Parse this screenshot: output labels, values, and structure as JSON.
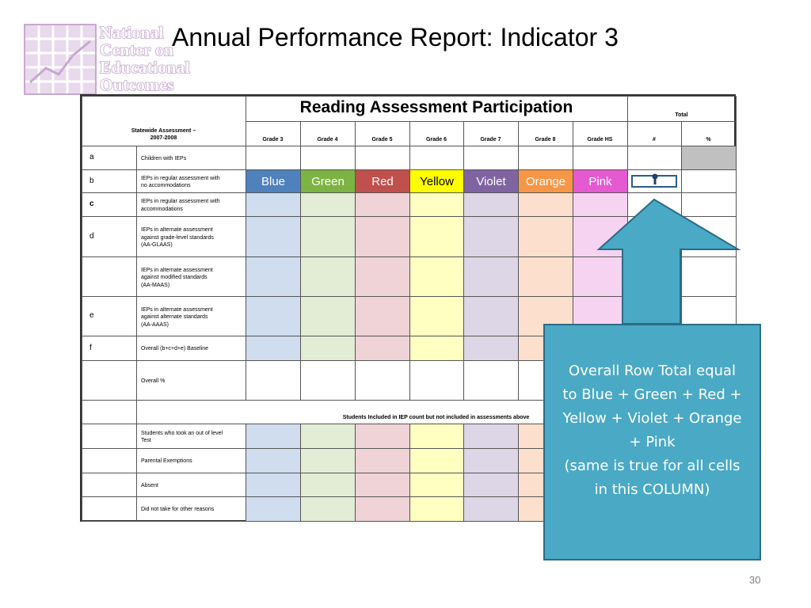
{
  "logo": {
    "lines": [
      "National",
      "Center on",
      "Educational",
      "Outcomes"
    ]
  },
  "slide": {
    "title": "Annual Performance Report: Indicator 3",
    "page_number": "30"
  },
  "table": {
    "title": "Reading Assessment Participation",
    "total_label": "Total",
    "statewide_label_line1": "Statewide Assessment –",
    "statewide_label_line2": "2007-2008",
    "grades": [
      "Grade 3",
      "Grade 4",
      "Grade 5",
      "Grade 6",
      "Grade 7",
      "Grade 8",
      "Grade HS"
    ],
    "hash_label": "#",
    "pct_label": "%",
    "column_colors": [
      "#cfddee",
      "#e3edd6",
      "#efd3d6",
      "#ffffc2",
      "#ddd6e6",
      "#fce0cd",
      "#f7d3f2"
    ],
    "color_labels": [
      {
        "label": "Blue",
        "color": "#4f81bd",
        "text": "#ffffff"
      },
      {
        "label": "Green",
        "color": "#7cb342",
        "text": "#ffffff"
      },
      {
        "label": "Red",
        "color": "#c0504d",
        "text": "#ffffff"
      },
      {
        "label": "Yellow",
        "color": "#ffff00",
        "text": "#000000"
      },
      {
        "label": "Violet",
        "color": "#8064a2",
        "text": "#ffffff"
      },
      {
        "label": "Orange",
        "color": "#f79646",
        "text": "#ffffff"
      },
      {
        "label": "Pink",
        "color": "#e55ad0",
        "text": "#ffffff"
      }
    ],
    "rows": [
      {
        "letter": "a",
        "letter_bold": false,
        "lines": [
          "Children with IEPs"
        ]
      },
      {
        "letter": "b",
        "letter_bold": false,
        "lines": [
          "IEPs in regular assessment with",
          "no accommodations"
        ]
      },
      {
        "letter": "c",
        "letter_bold": true,
        "lines": [
          "IEPs in regular assessment with",
          "accommodations"
        ]
      },
      {
        "letter": "d",
        "letter_bold": false,
        "lines": [
          "IEPs in alternate assessment",
          "against grade-level standards",
          "(AA-GLAAS)"
        ]
      },
      {
        "letter": "",
        "letter_bold": false,
        "lines": [
          "IEPs in alternate assessment",
          "against modified standards",
          "(AA-MAAS)"
        ]
      },
      {
        "letter": "e",
        "letter_bold": false,
        "lines": [
          "IEPs in alternate assessment",
          "against alternate standards",
          "(AA-AAAS)"
        ]
      },
      {
        "letter": "f",
        "letter_bold": false,
        "lines": [
          "Overall (b+c+d+e) Baseline"
        ]
      },
      {
        "letter": "",
        "letter_bold": false,
        "lines": [
          "Overall %"
        ]
      },
      {
        "letter": "",
        "letter_bold": false,
        "lines": [
          ""
        ]
      },
      {
        "letter": "",
        "letter_bold": false,
        "lines": [
          "Students who took an out of level",
          "Test"
        ]
      },
      {
        "letter": "",
        "letter_bold": false,
        "lines": [
          "Parental Exemptions"
        ]
      },
      {
        "letter": "",
        "letter_bold": false,
        "lines": [
          "Absent"
        ]
      },
      {
        "letter": "",
        "letter_bold": false,
        "lines": [
          "Did not take for other reasons"
        ]
      }
    ],
    "section_label": "Students Included in IEP count but not included in assessments above"
  },
  "callout": {
    "lines": [
      "Overall Row Total equal",
      "to Blue + Green + Red +",
      "Yellow + Violet + Orange",
      "+ Pink",
      "(same is true for all cells",
      "in this COLUMN)"
    ]
  }
}
